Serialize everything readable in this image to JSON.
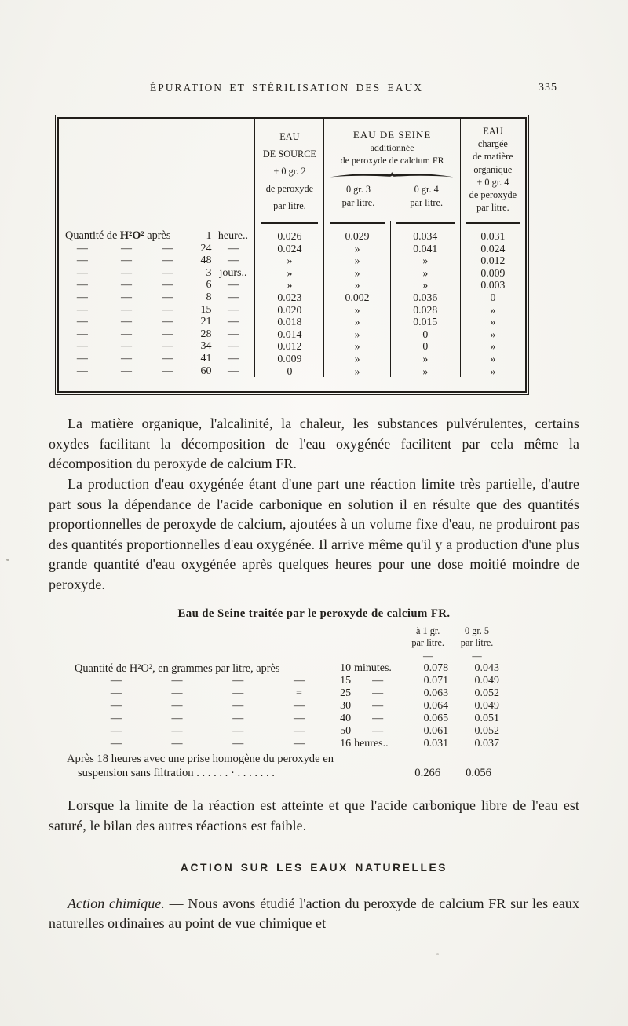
{
  "page": {
    "title": "ÉPURATION ET STÉRILISATION DES EAUX",
    "page_number": "335"
  },
  "table1": {
    "row_label": {
      "pre": "Quantité de ",
      "formula": "H²O²",
      "post": " après"
    },
    "headers": {
      "source": [
        "EAU",
        "DE SOURCE",
        "+ 0 gr. 2",
        "de peroxyde",
        "par litre."
      ],
      "seine_title": "EAU DE SEINE",
      "seine_sub": [
        "additionnée",
        "de peroxyde de calcium FR"
      ],
      "seine_col_a": [
        "0 gr. 3",
        "par litre."
      ],
      "seine_col_b": [
        "0 gr. 4",
        "par litre."
      ],
      "chargee": [
        "EAU",
        "chargée",
        "de  matière",
        "organique",
        "+ 0 gr. 4",
        "de peroxyde",
        "par litre."
      ]
    },
    "rows": [
      {
        "first": true,
        "num": "1",
        "unit": "heure..",
        "values": [
          "0.026",
          "0.029",
          "0.034",
          "0.031"
        ]
      },
      {
        "dashes": [
          "—",
          "—",
          "—"
        ],
        "num": "24",
        "unit": "—",
        "values": [
          "0.024",
          "»",
          "0.041",
          "0.024"
        ]
      },
      {
        "dashes": [
          "—",
          "—",
          "—"
        ],
        "num": "48",
        "unit": "—",
        "values": [
          "»",
          "»",
          "»",
          "0.012"
        ]
      },
      {
        "dashes": [
          "—",
          "—",
          "—"
        ],
        "num": "3",
        "unit": "jours..",
        "values": [
          "»",
          "»",
          "»",
          "0.009"
        ]
      },
      {
        "dashes": [
          "—",
          "—",
          "—"
        ],
        "num": "6",
        "unit": "—",
        "values": [
          "»",
          "»",
          "»",
          "0.003"
        ]
      },
      {
        "dashes": [
          "—",
          "—",
          "—"
        ],
        "num": "8",
        "unit": "—",
        "values": [
          "0.023",
          "0.002",
          "0.036",
          "0"
        ]
      },
      {
        "dashes": [
          "—",
          "—",
          "—"
        ],
        "num": "15",
        "unit": "—",
        "values": [
          "0.020",
          "»",
          "0.028",
          "»"
        ]
      },
      {
        "dashes": [
          "—",
          "—",
          "—"
        ],
        "num": "21",
        "unit": "—",
        "values": [
          "0.018",
          "»",
          "0.015",
          "»"
        ]
      },
      {
        "dashes": [
          "—",
          "—",
          "—"
        ],
        "num": "28",
        "unit": "—",
        "values": [
          "0.014",
          "»",
          "0",
          "»"
        ]
      },
      {
        "dashes": [
          "—",
          "—",
          "—"
        ],
        "num": "34",
        "unit": "—",
        "values": [
          "0.012",
          "»",
          "0",
          "»"
        ]
      },
      {
        "dashes": [
          "—",
          "—",
          "—"
        ],
        "num": "41",
        "unit": "—",
        "values": [
          "0.009",
          "»",
          "»",
          "»"
        ]
      },
      {
        "dashes": [
          "—",
          "—",
          "—"
        ],
        "num": "60",
        "unit": "—",
        "values": [
          "0",
          "»",
          "»",
          "»"
        ]
      }
    ]
  },
  "paragraphs": {
    "p1": "La matière organique, l'alcalinité, la chaleur, les substances pulvérulentes, certains oxydes facilitant la décomposition de l'eau oxygénée facilitent par cela même la décomposition du peroxyde de calcium FR.",
    "p2": "La production d'eau oxygénée étant d'une part une réaction limite très partielle, d'autre part sous la dépendance de l'acide carbonique en solution il en résulte que des quantités proportionnelles de peroxyde de calcium, ajoutées à un volume fixe d'eau, ne produiront pas des quantités proportionnelles d'eau oxygénée. Il arrive même qu'il y a production d'une plus grande quantité d'eau oxygénée après quelques heures pour une dose moitié moindre de peroxyde."
  },
  "table2": {
    "title": "Eau de Seine traitée par le peroxyde de calcium FR.",
    "col_headers": [
      [
        "à 1 gr.",
        "par litre."
      ],
      [
        "0 gr. 5",
        "par litre."
      ]
    ],
    "header_dash": "—",
    "rows": [
      {
        "first": true,
        "label": "Quantité de H²O², en grammes par litre, après",
        "num": "10",
        "unit": "minutes.",
        "values": [
          "0.078",
          "0.043"
        ]
      },
      {
        "dashes": [
          "—",
          "—",
          "—",
          "—"
        ],
        "num": "15",
        "unit": "—",
        "values": [
          "0.071",
          "0.049"
        ]
      },
      {
        "dashes": [
          "—",
          "—",
          "—",
          "="
        ],
        "num": "25",
        "unit": "—",
        "values": [
          "0.063",
          "0.052"
        ]
      },
      {
        "dashes": [
          "—",
          "—",
          "—",
          "—"
        ],
        "num": "30",
        "unit": "—",
        "values": [
          "0.064",
          "0.049"
        ]
      },
      {
        "dashes": [
          "—",
          "—",
          "—",
          "—"
        ],
        "num": "40",
        "unit": "—",
        "values": [
          "0.065",
          "0.051"
        ]
      },
      {
        "dashes": [
          "—",
          "—",
          "—",
          "—"
        ],
        "num": "50",
        "unit": "—",
        "values": [
          "0.061",
          "0.052"
        ]
      },
      {
        "dashes": [
          "—",
          "—",
          "—",
          "—"
        ],
        "num": "16",
        "unit": "heures..",
        "values": [
          "0.031",
          "0.037"
        ]
      }
    ],
    "footer": {
      "line1": "Après 18 heures avec une prise homogène du peroxyde en",
      "line2": "suspension sans filtration . . . . . . · . . . . . . .",
      "values": [
        "0.266",
        "0.056"
      ]
    }
  },
  "paragraph3": "Lorsque la limite de la réaction est atteinte et que l'acide carbonique libre de l'eau est saturé, le bilan des autres réactions est faible.",
  "section_heading": "ACTION SUR LES EAUX NATURELLES",
  "paragraph4": {
    "lead": "Action chimique.",
    "rest": " — Nous avons étudié l'action du peroxyde de calcium FR sur les eaux naturelles ordinaires au point de vue chimique et"
  }
}
